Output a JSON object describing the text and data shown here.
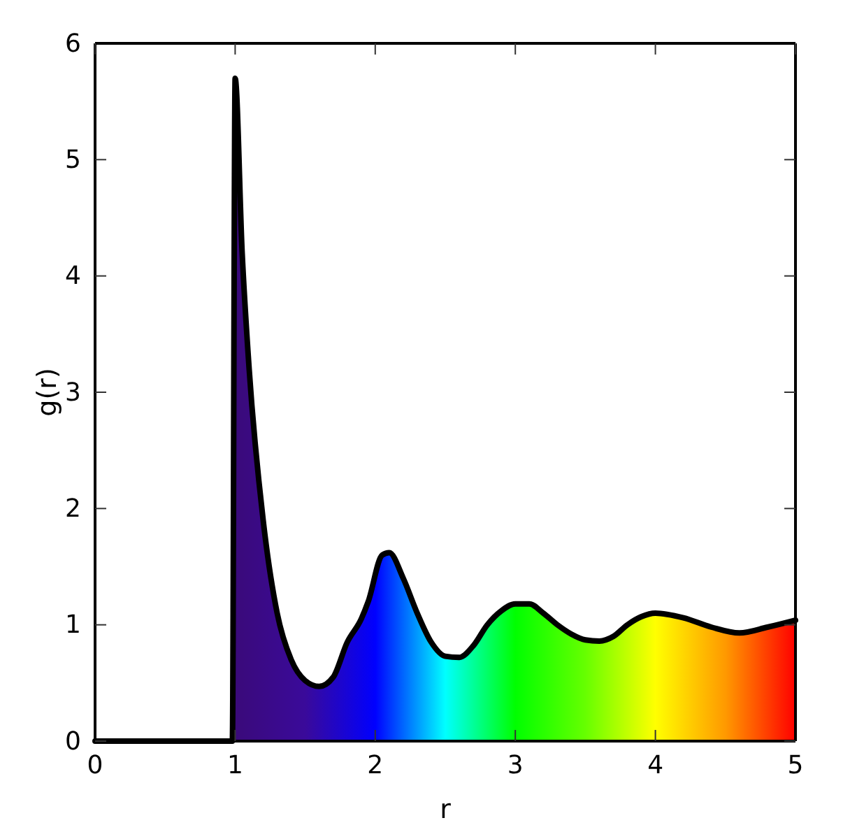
{
  "chart_data": {
    "type": "area",
    "xlabel": "r",
    "ylabel": "g(r)",
    "xlim": [
      0,
      5
    ],
    "ylim": [
      0,
      6
    ],
    "xticks": [
      0,
      1,
      2,
      3,
      4,
      5
    ],
    "yticks": [
      0,
      1,
      2,
      3,
      4,
      5,
      6
    ],
    "grid": false,
    "colors": [
      "#3a0a7a",
      "#3a0a9a",
      "#0000ff",
      "#00ffff",
      "#00ff00",
      "#66ff00",
      "#ffff00",
      "#ff9900",
      "#ff0000"
    ],
    "series": [
      {
        "color": "#000000",
        "x": [
          0,
          0.5,
          0.96,
          0.98,
          1.0,
          1.05,
          1.1,
          1.2,
          1.3,
          1.4,
          1.5,
          1.6,
          1.7,
          1.8,
          1.9,
          1.95,
          2.05,
          2.1,
          2.2,
          2.3,
          2.4,
          2.5,
          2.6,
          2.7,
          2.8,
          2.9,
          3.0,
          3.1,
          3.2,
          3.3,
          3.4,
          3.5,
          3.6,
          3.7,
          3.8,
          3.9,
          4.0,
          4.2,
          4.4,
          4.6,
          4.8,
          5.0
        ],
        "values": [
          0,
          0,
          0,
          0,
          5.7,
          4.2,
          3.2,
          1.9,
          1.1,
          0.7,
          0.52,
          0.47,
          0.55,
          0.85,
          1.05,
          1.2,
          1.6,
          1.62,
          1.4,
          1.1,
          0.85,
          0.73,
          0.72,
          0.82,
          1.0,
          1.12,
          1.18,
          1.18,
          1.1,
          1.0,
          0.92,
          0.87,
          0.86,
          0.9,
          1.0,
          1.07,
          1.1,
          1.06,
          0.98,
          0.93,
          0.98,
          1.04
        ]
      }
    ]
  }
}
